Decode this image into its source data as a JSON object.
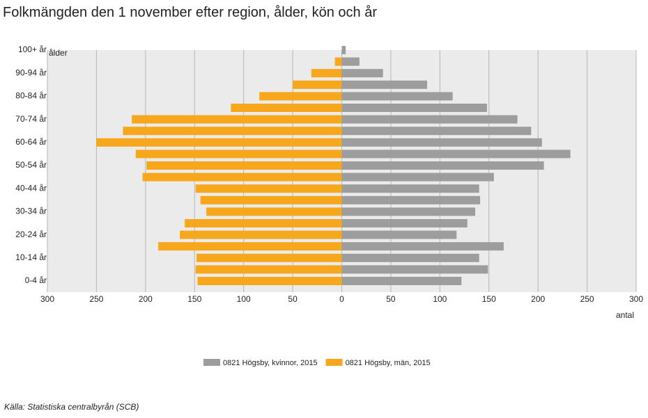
{
  "chart_data": {
    "type": "pyramid",
    "title": "Folkmängden den 1 november efter region, ålder, kön och år",
    "y_label": "ålder",
    "x_label": "antal",
    "source": "Källa: Statistiska centralbyrån (SCB)",
    "categories": [
      "0-4 år",
      null,
      "10-14 år",
      null,
      "20-24 år",
      null,
      "30-34 år",
      null,
      "40-44 år",
      null,
      "50-54 år",
      null,
      "60-64 år",
      null,
      "70-74 år",
      null,
      "80-84 år",
      null,
      "90-94 år",
      null,
      "100+ år"
    ],
    "series": [
      {
        "name": "0821 Högsby, kvinnor, 2015",
        "color": "#9d9d9d",
        "values": [
          122,
          149,
          140,
          165,
          117,
          128,
          136,
          141,
          140,
          155,
          206,
          233,
          204,
          193,
          179,
          148,
          113,
          87,
          42,
          18,
          4
        ]
      },
      {
        "name": "0821 Högsby, män, 2015",
        "color": "#f7a71b",
        "values": [
          147,
          149,
          148,
          187,
          165,
          160,
          138,
          144,
          149,
          203,
          199,
          210,
          250,
          223,
          214,
          113,
          84,
          50,
          31,
          7,
          0
        ]
      }
    ],
    "xlim": [
      -300,
      300
    ],
    "xticks": [
      {
        "value": -300,
        "label": "300"
      },
      {
        "value": -250,
        "label": "250"
      },
      {
        "value": -200,
        "label": "200"
      },
      {
        "value": -150,
        "label": "150"
      },
      {
        "value": -100,
        "label": "100"
      },
      {
        "value": -50,
        "label": "50"
      },
      0,
      50,
      100,
      150,
      200,
      250,
      300
    ],
    "grid": true
  }
}
